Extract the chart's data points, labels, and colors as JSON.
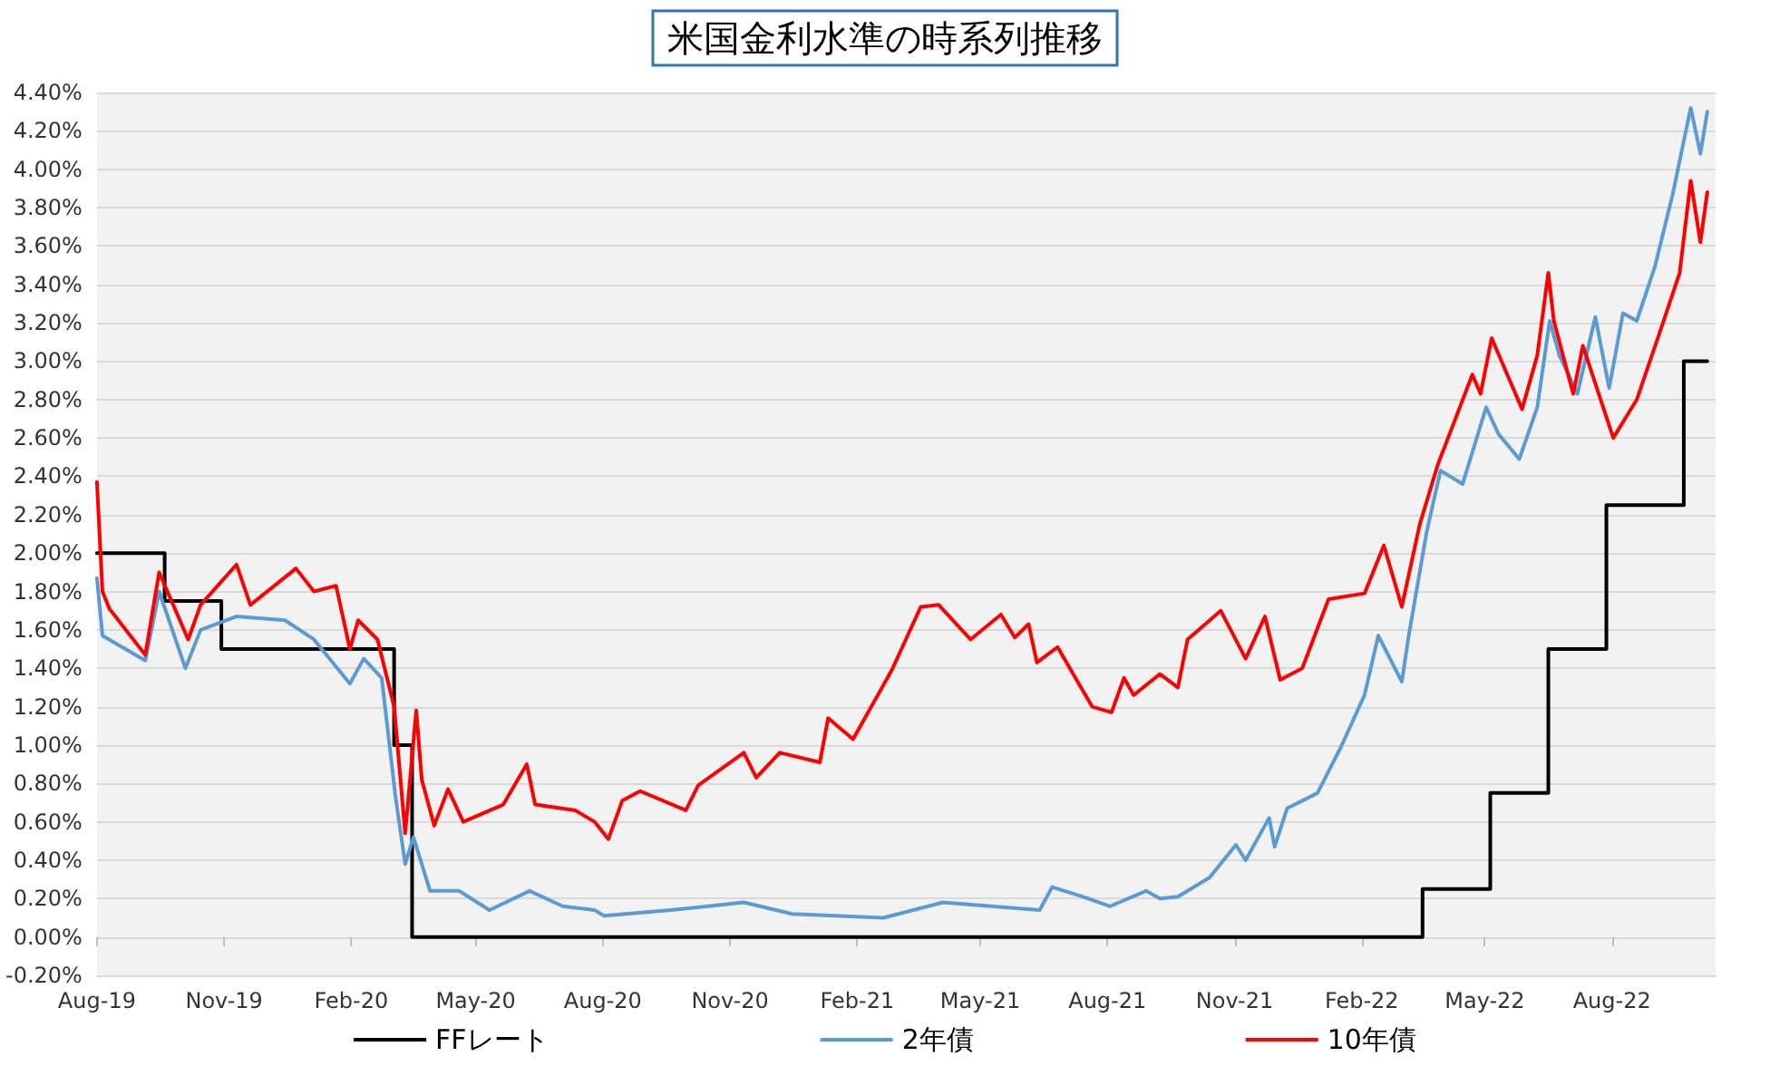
{
  "chart_data": {
    "type": "line",
    "title": "米国金利水準の時系列推移",
    "xlim": [
      "2019-08-01",
      "2022-10-15"
    ],
    "xticks": [
      {
        "value": "2019-08-01",
        "label": "Aug-19"
      },
      {
        "value": "2019-11-01",
        "label": "Nov-19"
      },
      {
        "value": "2020-02-01",
        "label": "Feb-20"
      },
      {
        "value": "2020-05-01",
        "label": "May-20"
      },
      {
        "value": "2020-08-01",
        "label": "Aug-20"
      },
      {
        "value": "2020-11-01",
        "label": "Nov-20"
      },
      {
        "value": "2021-02-01",
        "label": "Feb-21"
      },
      {
        "value": "2021-05-01",
        "label": "May-21"
      },
      {
        "value": "2021-08-01",
        "label": "Aug-21"
      },
      {
        "value": "2021-11-01",
        "label": "Nov-21"
      },
      {
        "value": "2022-02-01",
        "label": "Feb-22"
      },
      {
        "value": "2022-05-01",
        "label": "May-22"
      },
      {
        "value": "2022-08-01",
        "label": "Aug-22"
      }
    ],
    "ylim": [
      -0.2,
      4.4
    ],
    "yticks": [
      {
        "value": -0.2,
        "label": "-0.20%"
      },
      {
        "value": 0,
        "label": "0.00%"
      },
      {
        "value": 0.2,
        "label": "0.20%"
      },
      {
        "value": 0.4,
        "label": "0.40%"
      },
      {
        "value": 0.6,
        "label": "0.60%"
      },
      {
        "value": 0.8,
        "label": "0.80%"
      },
      {
        "value": 1,
        "label": "1.00%"
      },
      {
        "value": 1.2,
        "label": "1.20%"
      },
      {
        "value": 1.4,
        "label": "1.40%"
      },
      {
        "value": 1.6,
        "label": "1.60%"
      },
      {
        "value": 1.8,
        "label": "1.80%"
      },
      {
        "value": 2,
        "label": "2.00%"
      },
      {
        "value": 2.2,
        "label": "2.20%"
      },
      {
        "value": 2.4,
        "label": "2.40%"
      },
      {
        "value": 2.6,
        "label": "2.60%"
      },
      {
        "value": 2.8,
        "label": "2.80%"
      },
      {
        "value": 3,
        "label": "3.00%"
      },
      {
        "value": 3.2,
        "label": "3.20%"
      },
      {
        "value": 3.4,
        "label": "3.40%"
      },
      {
        "value": 3.6,
        "label": "3.60%"
      },
      {
        "value": 3.8,
        "label": "3.80%"
      },
      {
        "value": 4,
        "label": "4.00%"
      },
      {
        "value": 4.2,
        "label": "4.20%"
      },
      {
        "value": 4.4,
        "label": "4.40%"
      }
    ],
    "grid": "y",
    "legend": "bottom",
    "series": [
      {
        "name": "FFレート",
        "type": "step",
        "color": "#000000",
        "x": [
          "2019-08-01",
          "2019-09-19",
          "2019-10-30",
          "2020-03-03",
          "2020-03-16",
          "2022-03-17",
          "2022-05-05",
          "2022-06-16",
          "2022-07-28",
          "2022-09-22",
          "2022-10-09"
        ],
        "values": [
          2.0,
          1.75,
          1.5,
          1.0,
          0,
          0.25,
          0.75,
          1.5,
          2.25,
          3.0,
          3.0
        ]
      },
      {
        "name": "2年債",
        "color": "#5b9bd5",
        "x": [
          "2019-08-01",
          "2019-08-05",
          "2019-09-05",
          "2019-09-15",
          "2019-10-04",
          "2019-10-15",
          "2019-11-10",
          "2019-12-15",
          "2020-01-05",
          "2020-01-31",
          "2020-02-10",
          "2020-02-23",
          "2020-03-04",
          "2020-03-11",
          "2020-03-17",
          "2020-03-29",
          "2020-04-19",
          "2020-05-11",
          "2020-06-09",
          "2020-07-03",
          "2020-07-26",
          "2020-08-02",
          "2020-09-19",
          "2020-11-11",
          "2020-12-16",
          "2021-02-20",
          "2021-04-04",
          "2021-06-13",
          "2021-06-22",
          "2021-07-14",
          "2021-08-03",
          "2021-08-29",
          "2021-09-08",
          "2021-09-21",
          "2021-10-14",
          "2021-11-02",
          "2021-11-09",
          "2021-11-26",
          "2021-11-30",
          "2021-12-09",
          "2021-12-31",
          "2022-01-17",
          "2022-02-03",
          "2022-02-13",
          "2022-03-02",
          "2022-03-07",
          "2022-03-20",
          "2022-03-30",
          "2022-04-15",
          "2022-05-02",
          "2022-05-11",
          "2022-05-26",
          "2022-06-08",
          "2022-06-17",
          "2022-06-24",
          "2022-07-07",
          "2022-07-20",
          "2022-07-30",
          "2022-08-09",
          "2022-08-19",
          "2022-09-01",
          "2022-09-14",
          "2022-09-27",
          "2022-10-04",
          "2022-10-09"
        ],
        "values": [
          1.87,
          1.57,
          1.44,
          1.8,
          1.4,
          1.6,
          1.67,
          1.65,
          1.55,
          1.32,
          1.45,
          1.35,
          0.73,
          0.38,
          0.52,
          0.24,
          0.24,
          0.14,
          0.24,
          0.16,
          0.14,
          0.11,
          0.14,
          0.18,
          0.12,
          0.1,
          0.18,
          0.14,
          0.26,
          0.21,
          0.16,
          0.24,
          0.2,
          0.21,
          0.31,
          0.48,
          0.4,
          0.62,
          0.47,
          0.67,
          0.75,
          0.99,
          1.26,
          1.57,
          1.33,
          1.57,
          2.11,
          2.43,
          2.36,
          2.76,
          2.62,
          2.49,
          2.76,
          3.21,
          3.03,
          2.83,
          3.23,
          2.86,
          3.25,
          3.21,
          3.49,
          3.87,
          4.32,
          4.08,
          4.3
        ]
      },
      {
        "name": "10年債",
        "color": "#ff0000",
        "x": [
          "2019-08-01",
          "2019-08-05",
          "2019-08-10",
          "2019-09-05",
          "2019-09-15",
          "2019-10-06",
          "2019-10-15",
          "2019-11-10",
          "2019-11-20",
          "2019-12-23",
          "2020-01-05",
          "2020-01-21",
          "2020-01-31",
          "2020-02-06",
          "2020-02-20",
          "2020-03-03",
          "2020-03-11",
          "2020-03-19",
          "2020-03-23",
          "2020-04-01",
          "2020-04-11",
          "2020-04-22",
          "2020-05-21",
          "2020-06-07",
          "2020-06-13",
          "2020-07-12",
          "2020-07-26",
          "2020-08-05",
          "2020-08-15",
          "2020-08-28",
          "2020-09-30",
          "2020-10-09",
          "2020-11-11",
          "2020-11-20",
          "2020-12-07",
          "2021-01-05",
          "2021-01-11",
          "2021-01-29",
          "2021-02-26",
          "2021-03-19",
          "2021-04-01",
          "2021-04-24",
          "2021-05-16",
          "2021-05-26",
          "2021-06-05",
          "2021-06-11",
          "2021-06-26",
          "2021-07-21",
          "2021-08-04",
          "2021-08-13",
          "2021-08-20",
          "2021-09-08",
          "2021-09-21",
          "2021-09-28",
          "2021-10-22",
          "2021-11-09",
          "2021-11-23",
          "2021-12-04",
          "2021-12-20",
          "2022-01-08",
          "2022-02-03",
          "2022-02-17",
          "2022-03-02",
          "2022-03-15",
          "2022-03-28",
          "2022-04-13",
          "2022-04-22",
          "2022-04-28",
          "2022-05-06",
          "2022-05-28",
          "2022-06-08",
          "2022-06-16",
          "2022-06-20",
          "2022-07-04",
          "2022-07-11",
          "2022-08-02",
          "2022-08-19",
          "2022-09-06",
          "2022-09-19",
          "2022-09-27",
          "2022-10-04",
          "2022-10-09"
        ],
        "values": [
          2.37,
          1.8,
          1.71,
          1.47,
          1.9,
          1.55,
          1.73,
          1.94,
          1.73,
          1.92,
          1.8,
          1.83,
          1.5,
          1.65,
          1.55,
          1.2,
          0.54,
          1.18,
          0.82,
          0.58,
          0.77,
          0.6,
          0.69,
          0.9,
          0.69,
          0.66,
          0.6,
          0.51,
          0.71,
          0.76,
          0.66,
          0.79,
          0.96,
          0.83,
          0.96,
          0.91,
          1.14,
          1.03,
          1.39,
          1.72,
          1.73,
          1.55,
          1.68,
          1.56,
          1.63,
          1.43,
          1.51,
          1.2,
          1.17,
          1.35,
          1.26,
          1.37,
          1.3,
          1.55,
          1.7,
          1.45,
          1.67,
          1.34,
          1.4,
          1.76,
          1.79,
          2.04,
          1.72,
          2.15,
          2.46,
          2.76,
          2.93,
          2.83,
          3.12,
          2.75,
          3.03,
          3.46,
          3.21,
          2.83,
          3.08,
          2.6,
          2.8,
          3.18,
          3.46,
          3.94,
          3.62,
          3.88
        ]
      }
    ]
  }
}
